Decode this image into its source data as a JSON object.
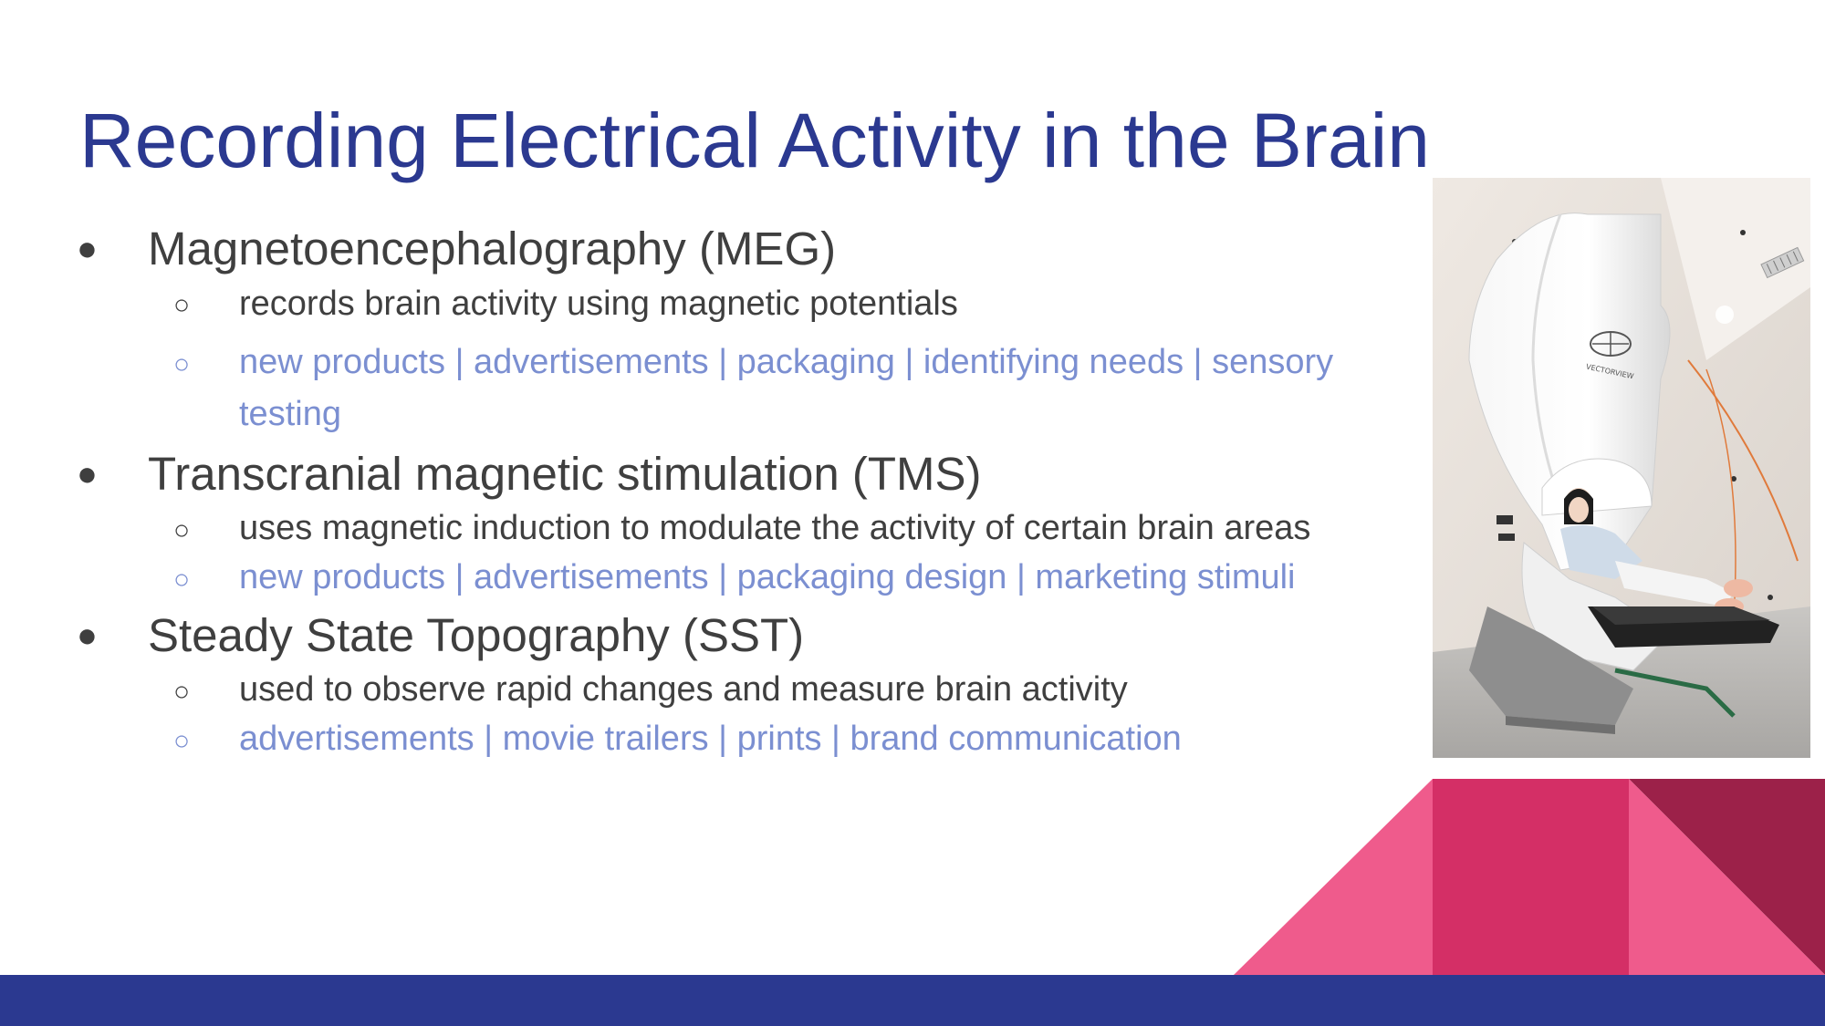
{
  "slide": {
    "title": "Recording Electrical Activity in the Brain",
    "sections": [
      {
        "heading": "Magnetoencephalography (MEG)",
        "details": [
          {
            "text": " records brain activity using magnetic potentials",
            "style": "dark"
          },
          {
            "text_line1": "new products | advertisements | packaging | identifying needs | sensory",
            "text_line2": "testing",
            "style": "accent"
          }
        ]
      },
      {
        "heading": "Transcranial magnetic stimulation (TMS)",
        "details": [
          {
            "text": "uses magnetic induction to modulate the activity of certain brain areas",
            "style": "dark"
          },
          {
            "text": "new products | advertisements | packaging design | marketing stimuli",
            "style": "accent"
          }
        ]
      },
      {
        "heading": "Steady State Topography (SST)",
        "details": [
          {
            "text": " used to observe  rapid changes and measure brain activity",
            "style": "dark"
          },
          {
            "text": "advertisements | movie trailers | prints | brand communication",
            "style": "accent"
          }
        ]
      }
    ],
    "markers": {
      "level1": "●",
      "level2": "○"
    },
    "photo": {
      "description_icon": "meg-scanner-photo",
      "brand_text": "VECTORVIEW"
    },
    "colors": {
      "title": "#2b3990",
      "body_text": "#3f3f3f",
      "accent_text": "#7b8fd1",
      "footer_bar": "#2b3990",
      "deco_pink": "#ef5b8c",
      "deco_magenta": "#d42f66",
      "deco_maroon": "#9c2149"
    }
  }
}
